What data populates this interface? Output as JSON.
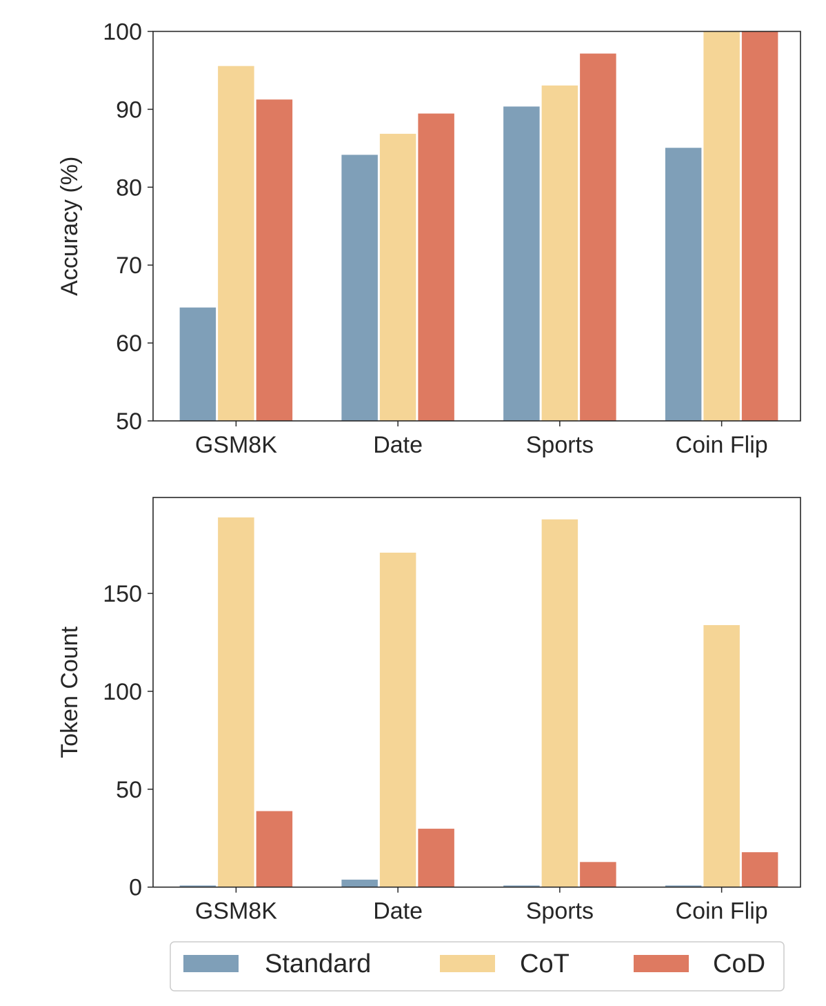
{
  "colors": {
    "Standard": "#7f9fb8",
    "CoT": "#f5d596",
    "CoD": "#de7a61",
    "axis": "#262626",
    "legend_border": "#cccccc"
  },
  "legend": {
    "entries": [
      "Standard",
      "CoT",
      "CoD"
    ],
    "placement": "bottom-center"
  },
  "chart_data": [
    {
      "type": "bar",
      "title": "",
      "xlabel": "",
      "ylabel": "Accuracy (%)",
      "categories": [
        "GSM8K",
        "Date",
        "Sports",
        "Coin Flip"
      ],
      "ylim": [
        50,
        100
      ],
      "yticks": [
        50,
        60,
        70,
        80,
        90,
        100
      ],
      "grid": false,
      "series": [
        {
          "name": "Standard",
          "values": [
            64.6,
            84.2,
            90.4,
            85.1
          ]
        },
        {
          "name": "CoT",
          "values": [
            95.6,
            86.9,
            93.1,
            100.0
          ]
        },
        {
          "name": "CoD",
          "values": [
            91.3,
            89.5,
            97.2,
            100.0
          ]
        }
      ]
    },
    {
      "type": "bar",
      "title": "",
      "xlabel": "",
      "ylabel": "Token Count",
      "categories": [
        "GSM8K",
        "Date",
        "Sports",
        "Coin Flip"
      ],
      "ylim": [
        0,
        199
      ],
      "yticks": [
        0,
        50,
        100,
        150
      ],
      "grid": false,
      "series": [
        {
          "name": "Standard",
          "values": [
            1,
            4,
            1,
            1
          ]
        },
        {
          "name": "CoT",
          "values": [
            189,
            171,
            188,
            134
          ]
        },
        {
          "name": "CoD",
          "values": [
            39,
            30,
            13,
            18
          ]
        }
      ]
    }
  ]
}
